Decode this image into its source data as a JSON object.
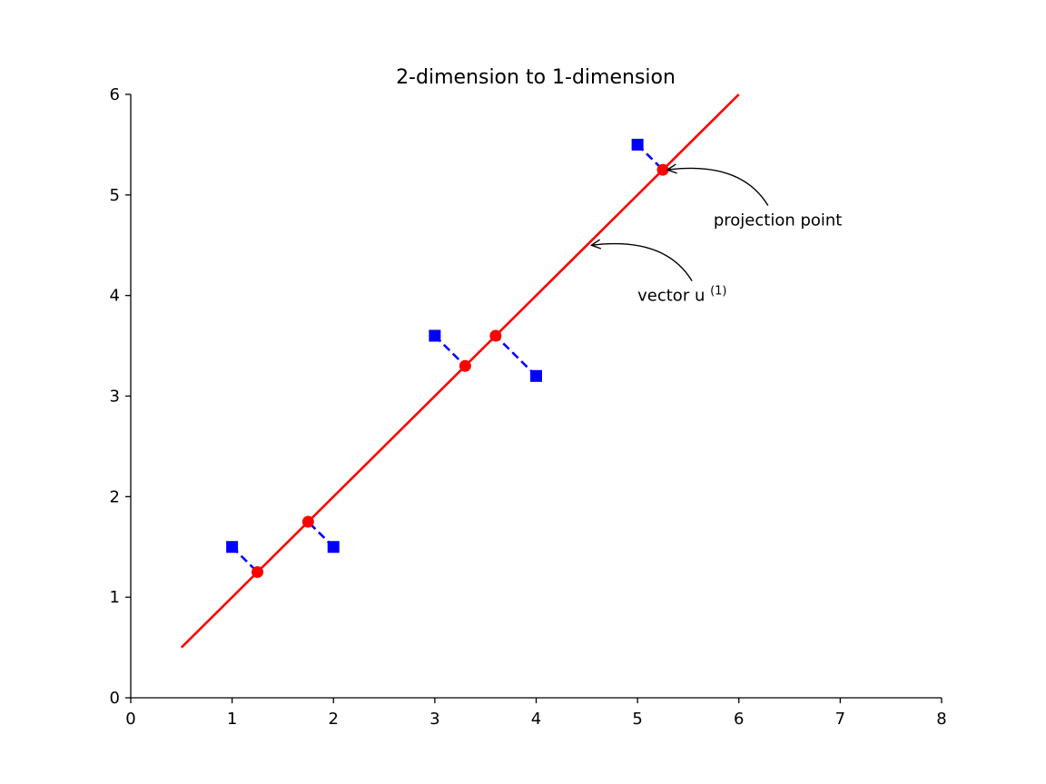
{
  "chart_data": {
    "type": "scatter",
    "title": "2-dimension to 1-dimension",
    "xlabel": "",
    "ylabel": "",
    "xlim": [
      0,
      8
    ],
    "ylim": [
      0,
      6
    ],
    "x_ticks": [
      "0",
      "1",
      "2",
      "3",
      "4",
      "5",
      "6",
      "7",
      "8"
    ],
    "y_ticks": [
      "0",
      "1",
      "2",
      "3",
      "4",
      "5",
      "6"
    ],
    "grid": false,
    "legend": "none",
    "series": [
      {
        "kind": "line",
        "color": "#ff0000",
        "points": [
          [
            0.5,
            0.5
          ],
          [
            6.0,
            6.0
          ]
        ]
      },
      {
        "kind": "markers",
        "marker": "square",
        "color": "#0000ff",
        "points": [
          [
            1.0,
            1.5
          ],
          [
            2.0,
            1.5
          ],
          [
            3.0,
            3.6
          ],
          [
            4.0,
            3.2
          ],
          [
            5.0,
            5.5
          ]
        ]
      },
      {
        "kind": "markers",
        "marker": "circle",
        "color": "#ff0000",
        "points": [
          [
            1.25,
            1.25
          ],
          [
            1.75,
            1.75
          ],
          [
            3.3,
            3.3
          ],
          [
            3.6,
            3.6
          ],
          [
            5.25,
            5.25
          ]
        ]
      }
    ],
    "projection_lines": {
      "color": "#0000ff",
      "style": "dashed",
      "pairs": [
        [
          [
            1.0,
            1.5
          ],
          [
            1.25,
            1.25
          ]
        ],
        [
          [
            2.0,
            1.5
          ],
          [
            1.75,
            1.75
          ]
        ],
        [
          [
            3.0,
            3.6
          ],
          [
            3.3,
            3.3
          ]
        ],
        [
          [
            4.0,
            3.2
          ],
          [
            3.6,
            3.6
          ]
        ],
        [
          [
            5.0,
            5.5
          ],
          [
            5.25,
            5.25
          ]
        ]
      ]
    },
    "annotations": [
      {
        "text": "projection point",
        "xy": [
          5.25,
          5.25
        ],
        "xytext": [
          5.75,
          4.75
        ]
      },
      {
        "text": "vector u",
        "superscript": "(1)",
        "xy": [
          4.5,
          4.5
        ],
        "xytext": [
          5.0,
          4.0
        ]
      }
    ]
  }
}
